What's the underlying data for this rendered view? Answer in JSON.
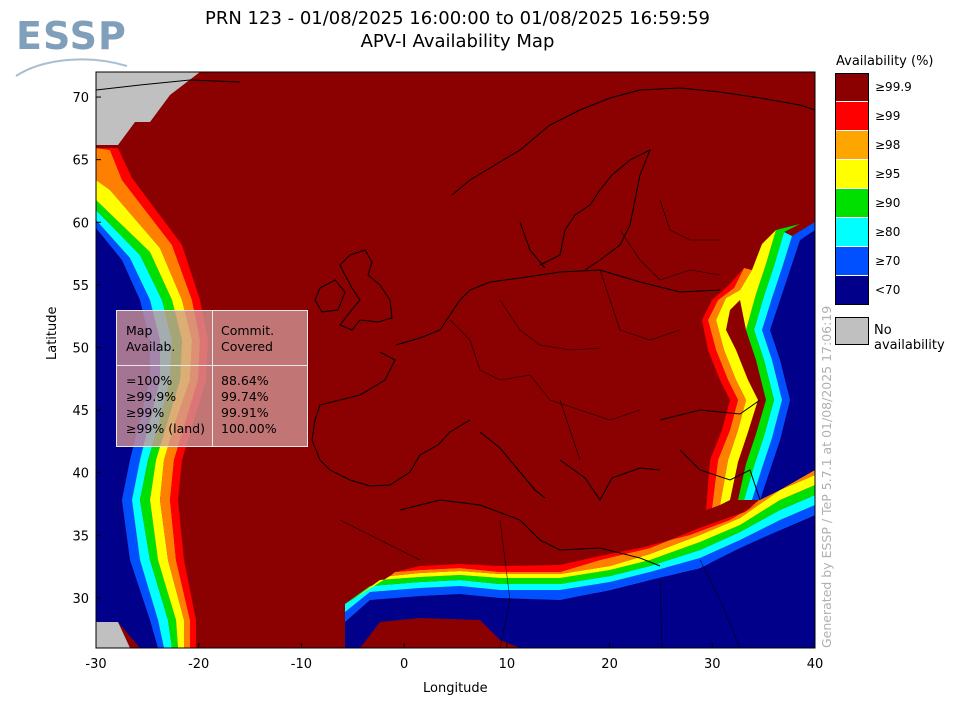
{
  "header": {
    "title_line1": "PRN 123 - 01/08/2025 16:00:00 to 01/08/2025 16:59:59",
    "title_line2": "APV-I Availability Map"
  },
  "logo": {
    "text": "ESSP"
  },
  "axes": {
    "xlabel": "Longitude",
    "ylabel": "Latitude",
    "x_ticks": [
      "-30",
      "-20",
      "-10",
      "0",
      "10",
      "20",
      "30",
      "40"
    ],
    "y_ticks": [
      "30",
      "35",
      "40",
      "45",
      "50",
      "55",
      "60",
      "65",
      "70"
    ],
    "xlim": [
      -30,
      40
    ],
    "ylim": [
      26,
      72
    ]
  },
  "legend": {
    "title": "Availability (%)",
    "items": [
      {
        "label": "≥99.9",
        "color": "#8b0000"
      },
      {
        "label": "≥99",
        "color": "#ff0000"
      },
      {
        "label": "≥98",
        "color": "#ffa500"
      },
      {
        "label": "≥95",
        "color": "#ffff00"
      },
      {
        "label": "≥90",
        "color": "#00e000"
      },
      {
        "label": "≥80",
        "color": "#00ffff"
      },
      {
        "label": "≥70",
        "color": "#0050ff"
      },
      {
        "label": "<70",
        "color": "#00008b"
      }
    ],
    "no_availability": {
      "label": "No availability",
      "color": "#c0c0c0"
    }
  },
  "stats_box": {
    "header_left_1": "Map",
    "header_left_2": "Availab.",
    "header_right_1": "Commit.",
    "header_right_2": "Covered",
    "rows": [
      {
        "label": "=100%",
        "value": "88.64%"
      },
      {
        "label": "≥99.9%",
        "value": "99.74%"
      },
      {
        "label": "≥99%",
        "value": "99.91%"
      },
      {
        "label": "≥99% (land)",
        "value": "100.00%"
      }
    ]
  },
  "generated_by": "Generated by ESSP / TeP 5.7.1 at 01/08/2025 17:06:19"
}
